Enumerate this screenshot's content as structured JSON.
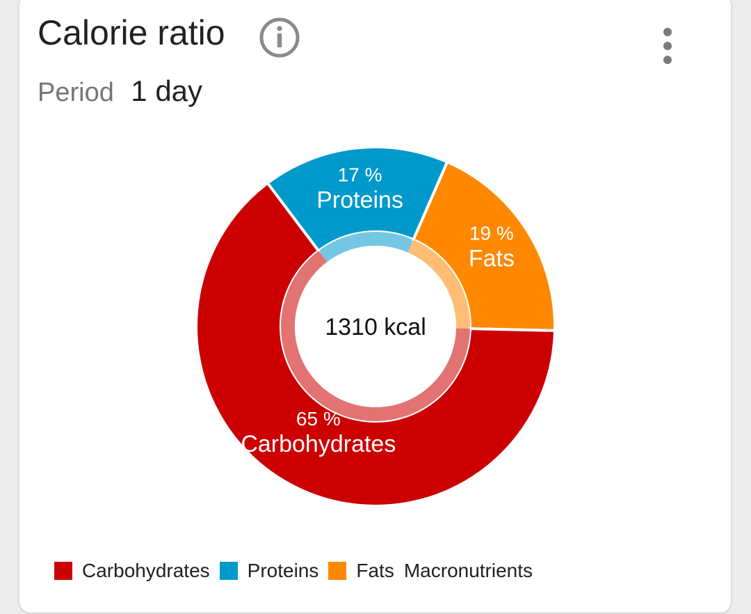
{
  "card": {
    "title": "Calorie ratio",
    "period_label": "Period",
    "period_value": "1 day",
    "info_icon": "info-circle-icon",
    "menu_icon": "more-vertical-icon"
  },
  "chart_data": {
    "type": "pie",
    "donut": true,
    "center_label": "1310 kcal",
    "slices": [
      {
        "name": "Carbohydrates",
        "value": 65,
        "label": "65 %",
        "color": "#cc0000"
      },
      {
        "name": "Proteins",
        "value": 17,
        "label": "17 %",
        "color": "#0099cc"
      },
      {
        "name": "Fats",
        "value": 19,
        "label": "19 %",
        "color": "#ff8800"
      }
    ],
    "legend": {
      "placement": "bottom-left",
      "items": [
        "Carbohydrates",
        "Proteins",
        "Fats"
      ],
      "caption": "Macronutrients"
    }
  }
}
